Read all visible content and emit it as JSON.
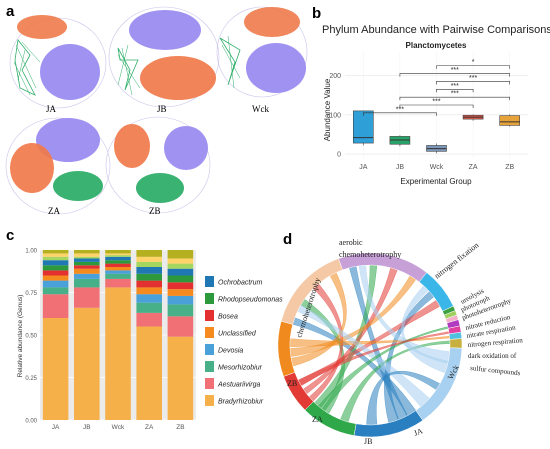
{
  "panel_labels": {
    "a": "a",
    "b": "b",
    "c": "c",
    "d": "d"
  },
  "panel_a": {
    "networks": [
      {
        "label": "JA"
      },
      {
        "label": "JB"
      },
      {
        "label": "Wck"
      },
      {
        "label": "ZA"
      },
      {
        "label": "ZB"
      }
    ],
    "colors": {
      "purple": "#9b8cf0",
      "orange": "#f07a4a",
      "green": "#2fae6a"
    }
  },
  "panel_b": {
    "title": "Phylum Abundance with Pairwise Comparisons",
    "subtitle": "Planctomycetes",
    "xlabel": "Experimental Group",
    "ylabel": "Abundance Value",
    "sig_labels": [
      "*",
      "***",
      "***",
      "***",
      "***",
      "***",
      "***"
    ]
  },
  "chart_data": [
    {
      "type": "box",
      "title": "Phylum Abundance with Pairwise Comparisons",
      "subtitle": "Planctomycetes",
      "xlabel": "Experimental Group",
      "ylabel": "Abundance Value",
      "categories": [
        "JA",
        "JB",
        "Wck",
        "ZA",
        "ZB"
      ],
      "yticks": [
        0,
        100,
        200
      ],
      "ylim": [
        -10,
        260
      ],
      "boxes": [
        {
          "group": "JA",
          "min": 22,
          "q1": 28,
          "median": 42,
          "q3": 110,
          "max": 110,
          "color": "#2f9fd8"
        },
        {
          "group": "JB",
          "min": 20,
          "q1": 25,
          "median": 36,
          "q3": 45,
          "max": 48,
          "color": "#2aa36a"
        },
        {
          "group": "Wck",
          "min": 2,
          "q1": 7,
          "median": 14,
          "q3": 22,
          "max": 27,
          "color": "#7b96b8"
        },
        {
          "group": "ZA",
          "min": 85,
          "q1": 89,
          "median": 94,
          "q3": 99,
          "max": 101,
          "color": "#e0574a"
        },
        {
          "group": "ZB",
          "min": 70,
          "q1": 73,
          "median": 82,
          "q3": 98,
          "max": 101,
          "color": "#e8a23a"
        }
      ],
      "comparisons": [
        {
          "from": "JA",
          "to": "Wck",
          "label": "***"
        },
        {
          "from": "JB",
          "to": "ZA",
          "label": "***"
        },
        {
          "from": "JB",
          "to": "ZB",
          "label": "***"
        },
        {
          "from": "Wck",
          "to": "ZA",
          "label": "***"
        },
        {
          "from": "Wck",
          "to": "ZB",
          "label": "***"
        },
        {
          "from": "JB",
          "to": "ZB",
          "label": "***"
        },
        {
          "from": "Wck",
          "to": "ZB",
          "label": "*"
        }
      ]
    },
    {
      "type": "bar",
      "stacked": true,
      "ylabel": "Relative abundance (Genus)",
      "categories": [
        "JA",
        "JB",
        "Wck",
        "ZA",
        "ZB"
      ],
      "ylim": [
        0,
        1
      ],
      "yticks": [
        "0.00",
        "0.25",
        "0.50",
        "0.75",
        "1.00"
      ],
      "series": [
        {
          "name": "Bradyrhizobium",
          "color": "#f5b04a",
          "values": [
            0.6,
            0.66,
            0.78,
            0.55,
            0.49
          ]
        },
        {
          "name": "Aestuariivirga",
          "color": "#f07075",
          "values": [
            0.14,
            0.12,
            0.05,
            0.08,
            0.12
          ]
        },
        {
          "name": "Mesorhizobium",
          "color": "#48b089",
          "values": [
            0.04,
            0.05,
            0.03,
            0.06,
            0.07
          ]
        },
        {
          "name": "Devosia",
          "color": "#4aa0d8",
          "values": [
            0.04,
            0.03,
            0.02,
            0.05,
            0.05
          ]
        },
        {
          "name": "Unclassified",
          "color": "#f58a1e",
          "values": [
            0.03,
            0.03,
            0.02,
            0.04,
            0.04
          ]
        },
        {
          "name": "Bosea",
          "color": "#e33030",
          "values": [
            0.03,
            0.02,
            0.02,
            0.04,
            0.04
          ]
        },
        {
          "name": "Rhodopseudomonas",
          "color": "#2c9a3c",
          "values": [
            0.03,
            0.02,
            0.02,
            0.04,
            0.04
          ]
        },
        {
          "name": "Ochrobactrum",
          "color": "#1f78b4",
          "values": [
            0.03,
            0.02,
            0.02,
            0.04,
            0.04
          ]
        },
        {
          "name": "",
          "color": "#a5d65f",
          "values": [
            0.02,
            0.01,
            0.01,
            0.03,
            0.03
          ]
        },
        {
          "name": "",
          "color": "#fdd36a",
          "values": [
            0.02,
            0.02,
            0.01,
            0.03,
            0.03
          ]
        },
        {
          "name": "",
          "color": "#b5b020",
          "values": [
            0.02,
            0.02,
            0.02,
            0.04,
            0.05
          ]
        }
      ],
      "legend_shown": [
        "Ochrobactrum",
        "Rhodopseudomonas",
        "Bosea",
        "Unclassified",
        "Devosia",
        "Mesorhizobium",
        "Aestuariivirga",
        "Bradyrhizobium"
      ],
      "legend_display": [
        "Ochrobactrum",
        "Rhodopseudomonas",
        "Bosea",
        "Unclassified",
        "Devosia",
        "Mesorhizobiur",
        "Aestuariivirga",
        "Bradyrhizobiur"
      ]
    }
  ],
  "panel_d": {
    "segments": [
      {
        "label": "JA",
        "color": "#2a7fc0"
      },
      {
        "label": "JB",
        "color": "#2fa84a"
      },
      {
        "label": "ZA",
        "color": "#e23a34"
      },
      {
        "label": "ZB",
        "color": "#f08a1e"
      },
      {
        "label": "chemoheterotrophy",
        "color": "#f5c9a5"
      },
      {
        "label": "aerobic chemoheterotrophy",
        "color": "#c8a0d8"
      },
      {
        "label": "nitrogen fixation",
        "color": "#3ab7e8"
      },
      {
        "label": "ureolysis",
        "color": "#3aa040"
      },
      {
        "label": "phototroph",
        "color": "#a0d060"
      },
      {
        "label": "photoheterotrophy",
        "color": "#f4b0c8"
      },
      {
        "label": "nitrate reduction",
        "color": "#b03ac0"
      },
      {
        "label": "nitrate respiration",
        "color": "#e040a0"
      },
      {
        "label": "nitrogen respiration",
        "color": "#50c0e0"
      },
      {
        "label": "dark oxidation of sulfur compounds",
        "color": "#c8b040"
      },
      {
        "label": "Wck",
        "color": "#a8d0f0"
      }
    ],
    "text": {
      "aerobic_line1": "aerobic",
      "aerobic_line2": "chemoheterotrophy",
      "chemo": "chemoheterotrophy",
      "nfix": "nitrogen fixation",
      "ureolysis": "ureolysis",
      "phototroph": "phototroph",
      "photohet": "photoheterotrophy",
      "nitrate_red": "nitrate reduction",
      "nitrate_resp": "nitrate respiration",
      "nitrogen_resp": "nitrogen respiration",
      "dark1": "dark oxidation of",
      "dark2": "sulfur compounds",
      "wck": "Wck",
      "ja": "JA",
      "jb": "JB",
      "za": "ZA",
      "zb": "ZB"
    }
  }
}
